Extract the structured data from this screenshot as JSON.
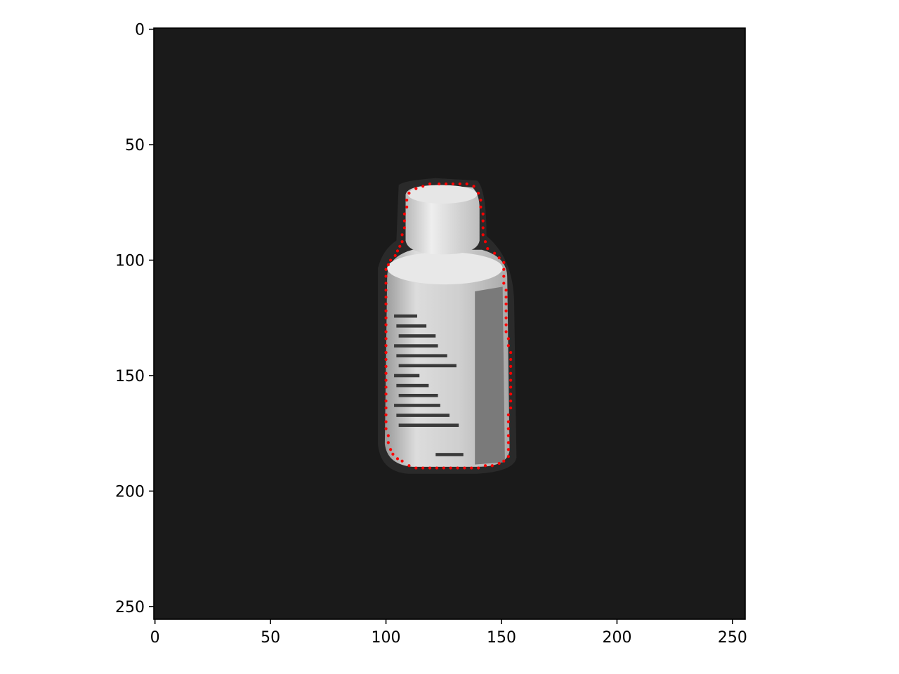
{
  "chart_data": {
    "type": "scatter",
    "title": "",
    "xlabel": "",
    "ylabel": "",
    "image_size": [
      256,
      256
    ],
    "xlim": [
      0,
      256
    ],
    "ylim": [
      256,
      0
    ],
    "xticks": [
      0,
      50,
      100,
      150,
      200,
      250
    ],
    "yticks": [
      0,
      50,
      100,
      150,
      200,
      250
    ],
    "xtick_labels": [
      "0",
      "50",
      "100",
      "150",
      "200",
      "250"
    ],
    "ytick_labels": [
      "0",
      "50",
      "100",
      "150",
      "200",
      "250"
    ],
    "grid": false,
    "background_color": "#1a1a1a",
    "contour_color": "#ff0000",
    "object_colors": {
      "body": "#d8d8d8",
      "cap": "#e6e6e6",
      "side_panel": "#7a7a7a",
      "label_text": "#3a3a3a",
      "shadow": "#2a2a2a"
    },
    "contour_points": [
      [
        123,
        67
      ],
      [
        126,
        67
      ],
      [
        129,
        67
      ],
      [
        132,
        67
      ],
      [
        135,
        67
      ],
      [
        138,
        68
      ],
      [
        140,
        71
      ],
      [
        141,
        74
      ],
      [
        141,
        77
      ],
      [
        142,
        80
      ],
      [
        142,
        83
      ],
      [
        142,
        86
      ],
      [
        142,
        89
      ],
      [
        143,
        92
      ],
      [
        144,
        95
      ],
      [
        147,
        97
      ],
      [
        149,
        99
      ],
      [
        151,
        101
      ],
      [
        151,
        104
      ],
      [
        151,
        107
      ],
      [
        151,
        110
      ],
      [
        152,
        113
      ],
      [
        152,
        116
      ],
      [
        152,
        119
      ],
      [
        152,
        122
      ],
      [
        152,
        125
      ],
      [
        152,
        128
      ],
      [
        152,
        131
      ],
      [
        153,
        134
      ],
      [
        153,
        137
      ],
      [
        154,
        140
      ],
      [
        154,
        143
      ],
      [
        154,
        146
      ],
      [
        154,
        149
      ],
      [
        154,
        152
      ],
      [
        154,
        155
      ],
      [
        154,
        158
      ],
      [
        154,
        161
      ],
      [
        154,
        164
      ],
      [
        153,
        167
      ],
      [
        153,
        170
      ],
      [
        153,
        173
      ],
      [
        153,
        176
      ],
      [
        153,
        179
      ],
      [
        153,
        182
      ],
      [
        153,
        185
      ],
      [
        151,
        187
      ],
      [
        149,
        188
      ],
      [
        146,
        189
      ],
      [
        143,
        189
      ],
      [
        140,
        190
      ],
      [
        137,
        190
      ],
      [
        134,
        190
      ],
      [
        131,
        190
      ],
      [
        128,
        190
      ],
      [
        125,
        190
      ],
      [
        122,
        190
      ],
      [
        119,
        190
      ],
      [
        116,
        190
      ],
      [
        113,
        190
      ],
      [
        110,
        189
      ],
      [
        107,
        187
      ],
      [
        105,
        186
      ],
      [
        103,
        184
      ],
      [
        102,
        182
      ],
      [
        101,
        179
      ],
      [
        101,
        176
      ],
      [
        100,
        173
      ],
      [
        100,
        170
      ],
      [
        100,
        167
      ],
      [
        100,
        164
      ],
      [
        100,
        161
      ],
      [
        100,
        158
      ],
      [
        100,
        155
      ],
      [
        100,
        152
      ],
      [
        100,
        149
      ],
      [
        100,
        146
      ],
      [
        100,
        143
      ],
      [
        100,
        140
      ],
      [
        100,
        137
      ],
      [
        100,
        134
      ],
      [
        100,
        131
      ],
      [
        100,
        128
      ],
      [
        100,
        125
      ],
      [
        100,
        122
      ],
      [
        100,
        119
      ],
      [
        100,
        116
      ],
      [
        100,
        113
      ],
      [
        100,
        110
      ],
      [
        100,
        107
      ],
      [
        100,
        104
      ],
      [
        101,
        102
      ],
      [
        102,
        100
      ],
      [
        104,
        98
      ],
      [
        105,
        96
      ],
      [
        106,
        94
      ],
      [
        107,
        92
      ],
      [
        107,
        89
      ],
      [
        108,
        86
      ],
      [
        108,
        83
      ],
      [
        108,
        80
      ],
      [
        109,
        77
      ],
      [
        109,
        74
      ],
      [
        110,
        71
      ],
      [
        113,
        69
      ],
      [
        116,
        68
      ],
      [
        119,
        67
      ]
    ]
  }
}
